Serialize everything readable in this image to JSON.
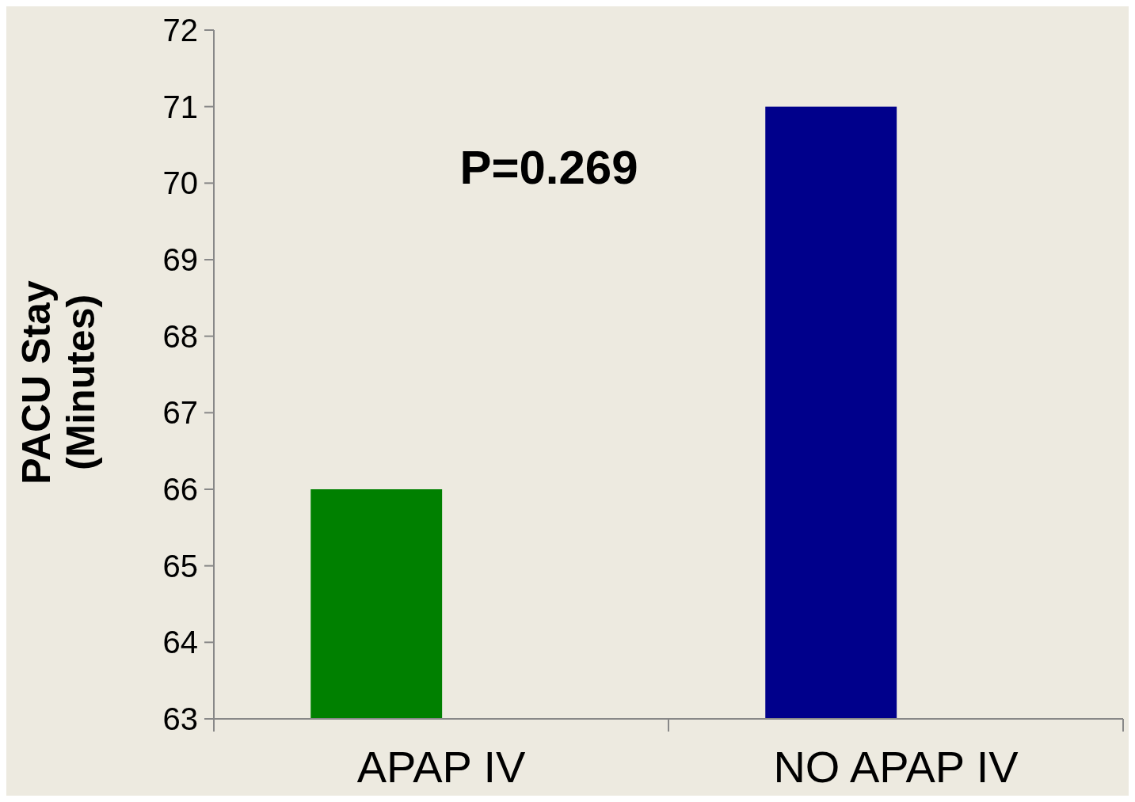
{
  "chart_data": {
    "type": "bar",
    "ylabel": "PACU Stay\n(Minutes)",
    "categories": [
      "APAP IV",
      "NO APAP IV"
    ],
    "values": [
      66,
      71
    ],
    "colors": [
      "#008000",
      "#00008b"
    ],
    "ylim": [
      63,
      72
    ],
    "yticks": [
      63,
      64,
      65,
      66,
      67,
      68,
      69,
      70,
      71,
      72
    ],
    "grid": false,
    "annotations": [
      "P=0.269"
    ]
  }
}
